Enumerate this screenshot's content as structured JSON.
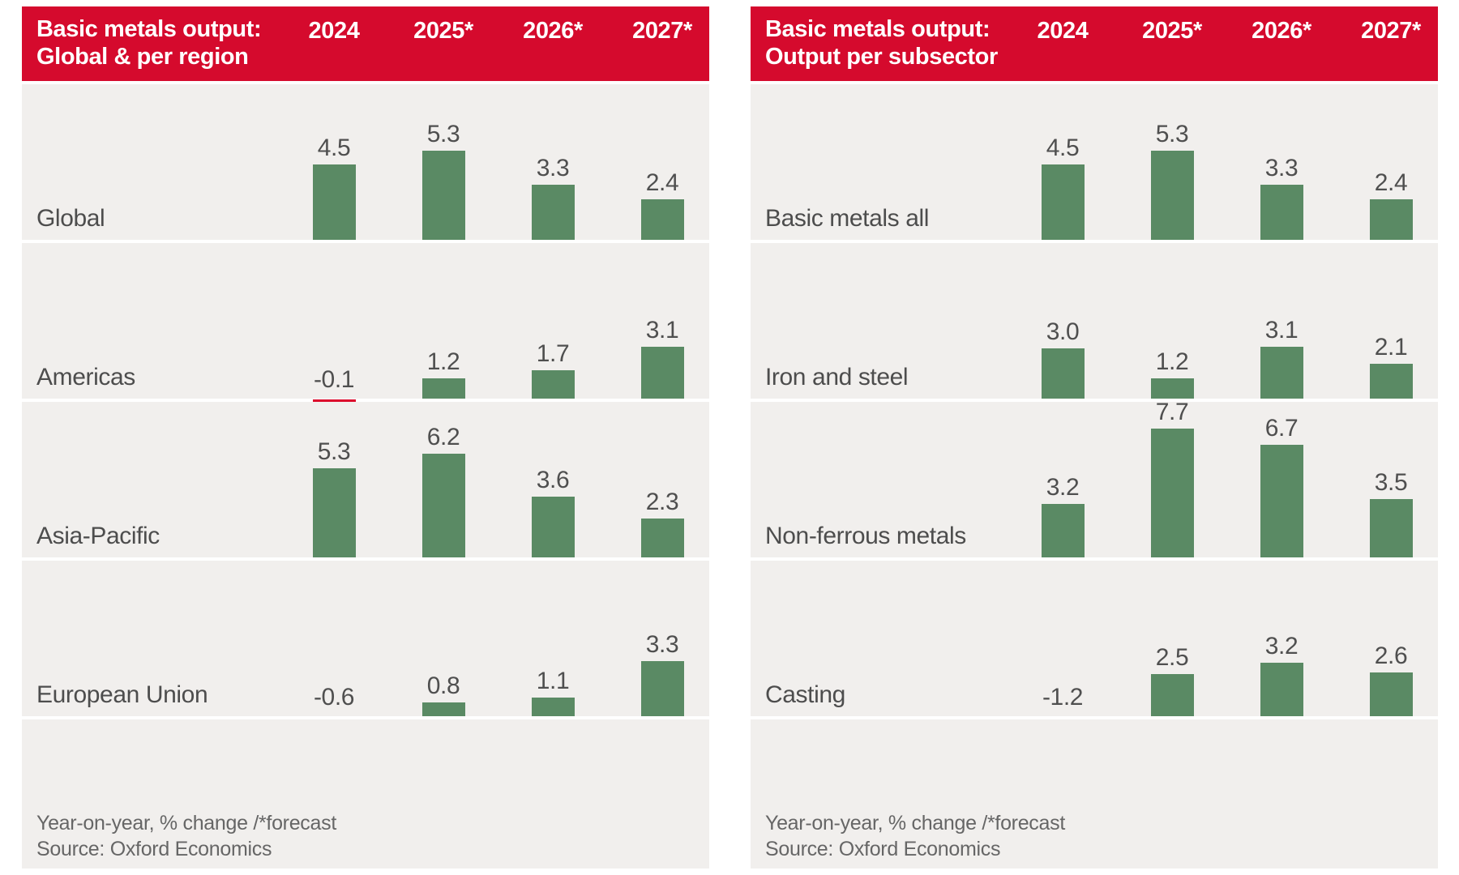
{
  "columns": [
    "2024",
    "2025*",
    "2026*",
    "2027*"
  ],
  "footer": {
    "note": "Year-on-year, % change /*forecast",
    "source": "Source: Oxford Economics"
  },
  "colors": {
    "header_red": "#d50a2d",
    "negative_bar_red": "#dc0a2c",
    "bar_green": "#5a8a64",
    "band_background": "#f1efed",
    "header_text": "#ffffff",
    "label_gray": "#4d4d4d"
  },
  "chart_data": [
    {
      "type": "bar",
      "title": "Basic metals output: Global & per region",
      "title_line1": "Basic metals output:",
      "title_line2": "Global & per region",
      "categories": [
        "2024",
        "2025*",
        "2026*",
        "2027*"
      ],
      "series": [
        {
          "name": "Global",
          "values": [
            4.5,
            5.3,
            3.3,
            2.4
          ]
        },
        {
          "name": "Americas",
          "values": [
            -0.1,
            1.2,
            1.7,
            3.1
          ]
        },
        {
          "name": "Asia-Pacific",
          "values": [
            5.3,
            6.2,
            3.6,
            2.3
          ]
        },
        {
          "name": "European Union",
          "values": [
            -0.6,
            0.8,
            1.1,
            3.3
          ]
        }
      ],
      "ylabel": "Year-on-year, % change",
      "legend_position": "none",
      "grid": false
    },
    {
      "type": "bar",
      "title": "Basic metals output: Output per subsector",
      "title_line1": "Basic metals output:",
      "title_line2": "Output per subsector",
      "categories": [
        "2024",
        "2025*",
        "2026*",
        "2027*"
      ],
      "series": [
        {
          "name": "Basic metals all",
          "values": [
            4.5,
            5.3,
            3.3,
            2.4
          ]
        },
        {
          "name": "Iron and steel",
          "values": [
            3.0,
            1.2,
            3.1,
            2.1
          ]
        },
        {
          "name": "Non-ferrous metals",
          "values": [
            3.2,
            7.7,
            6.7,
            3.5
          ]
        },
        {
          "name": "Casting",
          "values": [
            -1.2,
            2.5,
            3.2,
            2.6
          ]
        }
      ],
      "ylabel": "Year-on-year, % change",
      "legend_position": "none",
      "grid": false
    }
  ]
}
